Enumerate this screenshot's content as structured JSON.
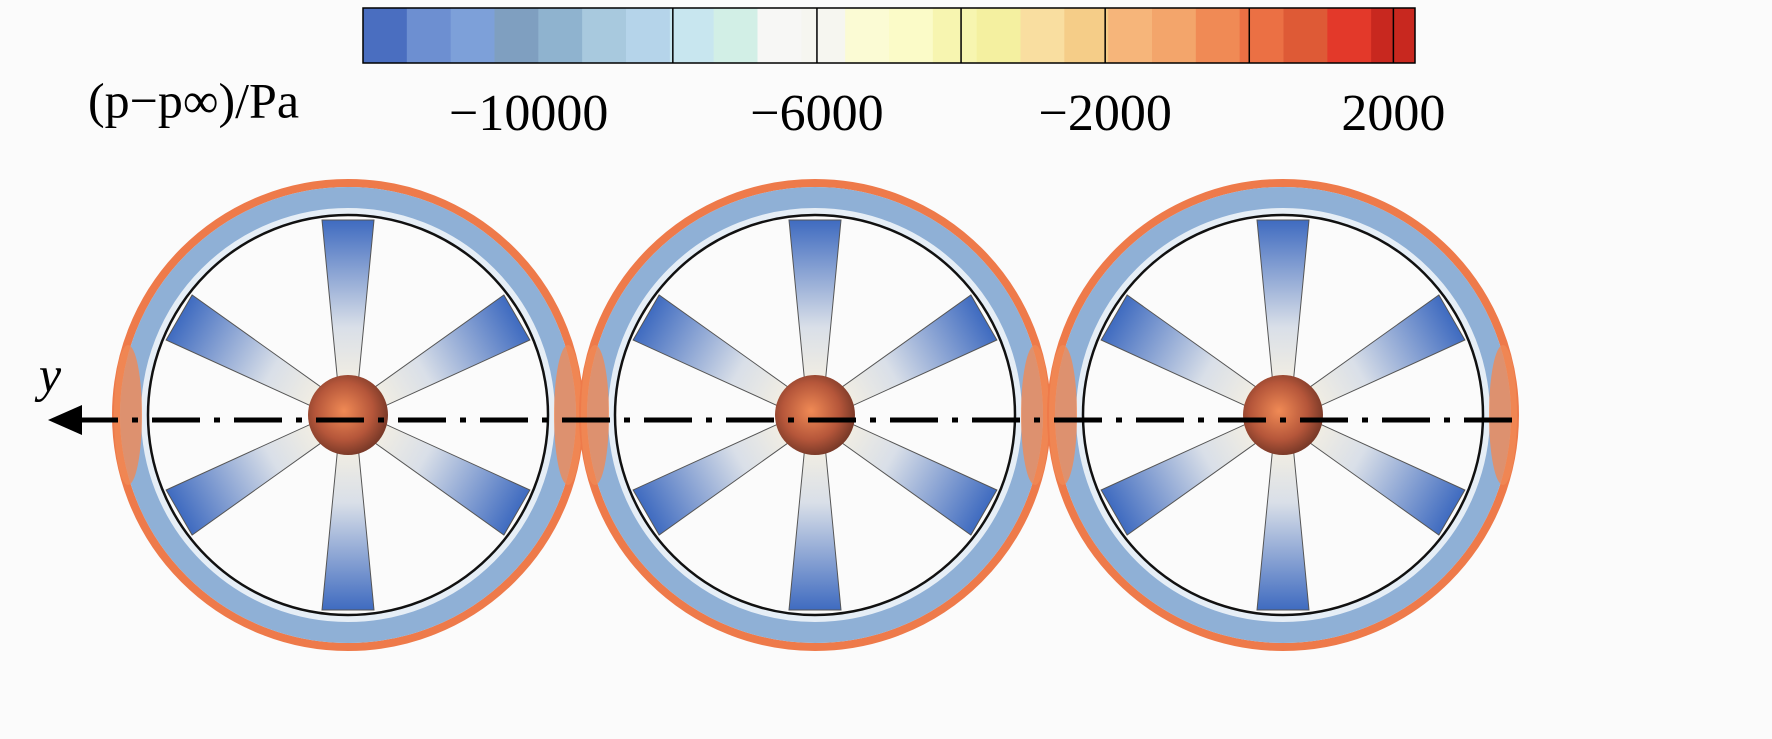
{
  "colorbar": {
    "label": "(p−p∞)/Pa",
    "lim": [
      -12300,
      2300
    ],
    "ticks": [
      {
        "value": -10000,
        "label": "−10000"
      },
      {
        "value": -6000,
        "label": "−6000"
      },
      {
        "value": -2000,
        "label": "−2000"
      },
      2000
    ],
    "contour_lines": [
      -8000,
      -6000,
      -4000,
      -2000,
      0,
      2000
    ],
    "colormap": [
      "#4a6ec0",
      "#6d8fd1",
      "#7da0d9",
      "#7f9fc0",
      "#8fb3cf",
      "#a8c9de",
      "#b5d4ea",
      "#c8e6ef",
      "#d2efe6",
      "#f7f7f5",
      "#f6f6f0",
      "#fbfbd4",
      "#fbfbc8",
      "#f7f5b0",
      "#f4f0a0",
      "#f9dea0",
      "#f5cd88",
      "#f6b57a",
      "#f3a56b",
      "#f08a55",
      "#eb7044",
      "#de5a36",
      "#e3392a",
      "#c8281f"
    ]
  },
  "axis_label": "y"
}
